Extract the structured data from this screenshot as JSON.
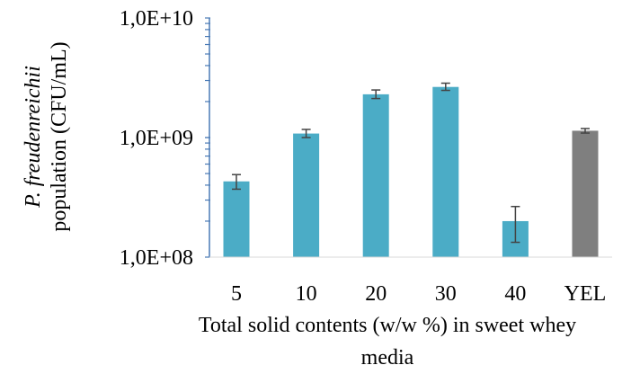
{
  "chart_data": {
    "type": "bar",
    "title": "",
    "log_scale_y": true,
    "ylim": [
      100000000,
      10000000000
    ],
    "y_tick_labels": [
      "1,0E+10",
      "1,0E+09",
      "1,0E+08"
    ],
    "categories": [
      "5",
      "10",
      "20",
      "30",
      "40",
      "YEL"
    ],
    "values": [
      430000000,
      1080000000,
      2300000000,
      2650000000,
      200000000,
      1140000000
    ],
    "error_low": [
      370000000,
      1000000000,
      2120000000,
      2480000000,
      133000000,
      1090000000
    ],
    "error_high": [
      490000000,
      1170000000,
      2500000000,
      2850000000,
      265000000,
      1190000000
    ],
    "bar_colors": [
      "#4bacc6",
      "#4bacc6",
      "#4bacc6",
      "#4bacc6",
      "#4bacc6",
      "#7f7f7f"
    ],
    "xlabel_lines": [
      "Total solid contents (w/w %) in sweet whey",
      "media"
    ],
    "ylabel_italic": "P. freudenreichii",
    "ylabel_plain": "population (CFU/mL)",
    "grid": false,
    "legend": "none"
  }
}
